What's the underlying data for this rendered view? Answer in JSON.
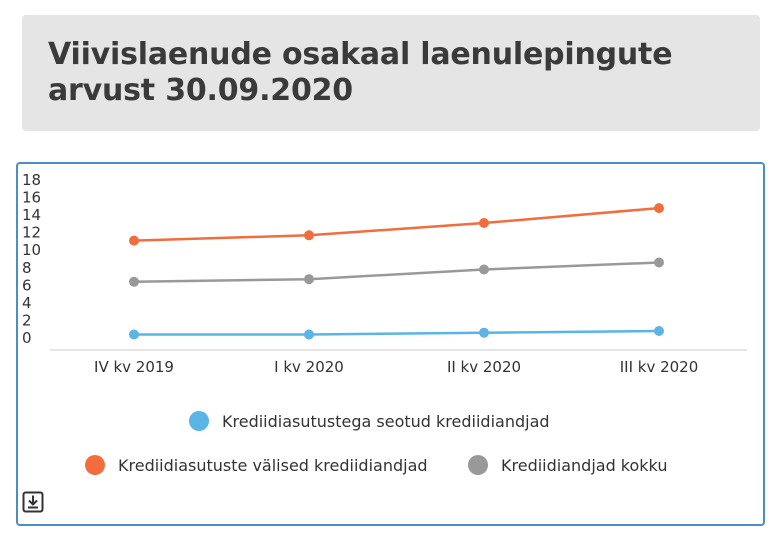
{
  "header": {
    "title_line1": "Viivislaenude osakaal laenulepingute",
    "title_line2": "arvust 30.09.2020"
  },
  "toolbar": {
    "download_icon": "download-icon"
  },
  "colors": {
    "series1": "#5ab4e5",
    "series2": "#f26d3d",
    "series3": "#999999",
    "panel_border": "#4a8ec9",
    "header_bg": "#e5e5e5"
  },
  "chart_data": {
    "type": "line",
    "title": "Viivislaenude osakaal laenulepingute arvust 30.09.2020",
    "xlabel": "",
    "ylabel": "",
    "categories": [
      "IV kv 2019",
      "I kv 2020",
      "II kv 2020",
      "III kv 2020"
    ],
    "ylim": [
      0,
      18
    ],
    "yticks": [
      0,
      2,
      4,
      6,
      8,
      10,
      12,
      14,
      16,
      18
    ],
    "grid": false,
    "legend_position": "bottom",
    "series": [
      {
        "name": "Krediidiasutustega seotud krediidiandjad",
        "color": "#5ab4e5",
        "values": [
          0.4,
          0.4,
          0.6,
          0.8
        ]
      },
      {
        "name": "Krediidiasutuste välised krediidiandjad",
        "color": "#f26d3d",
        "values": [
          11.1,
          11.7,
          13.1,
          14.8
        ]
      },
      {
        "name": "Krediidiandjad kokku",
        "color": "#999999",
        "values": [
          6.4,
          6.7,
          7.8,
          8.6
        ]
      }
    ]
  }
}
